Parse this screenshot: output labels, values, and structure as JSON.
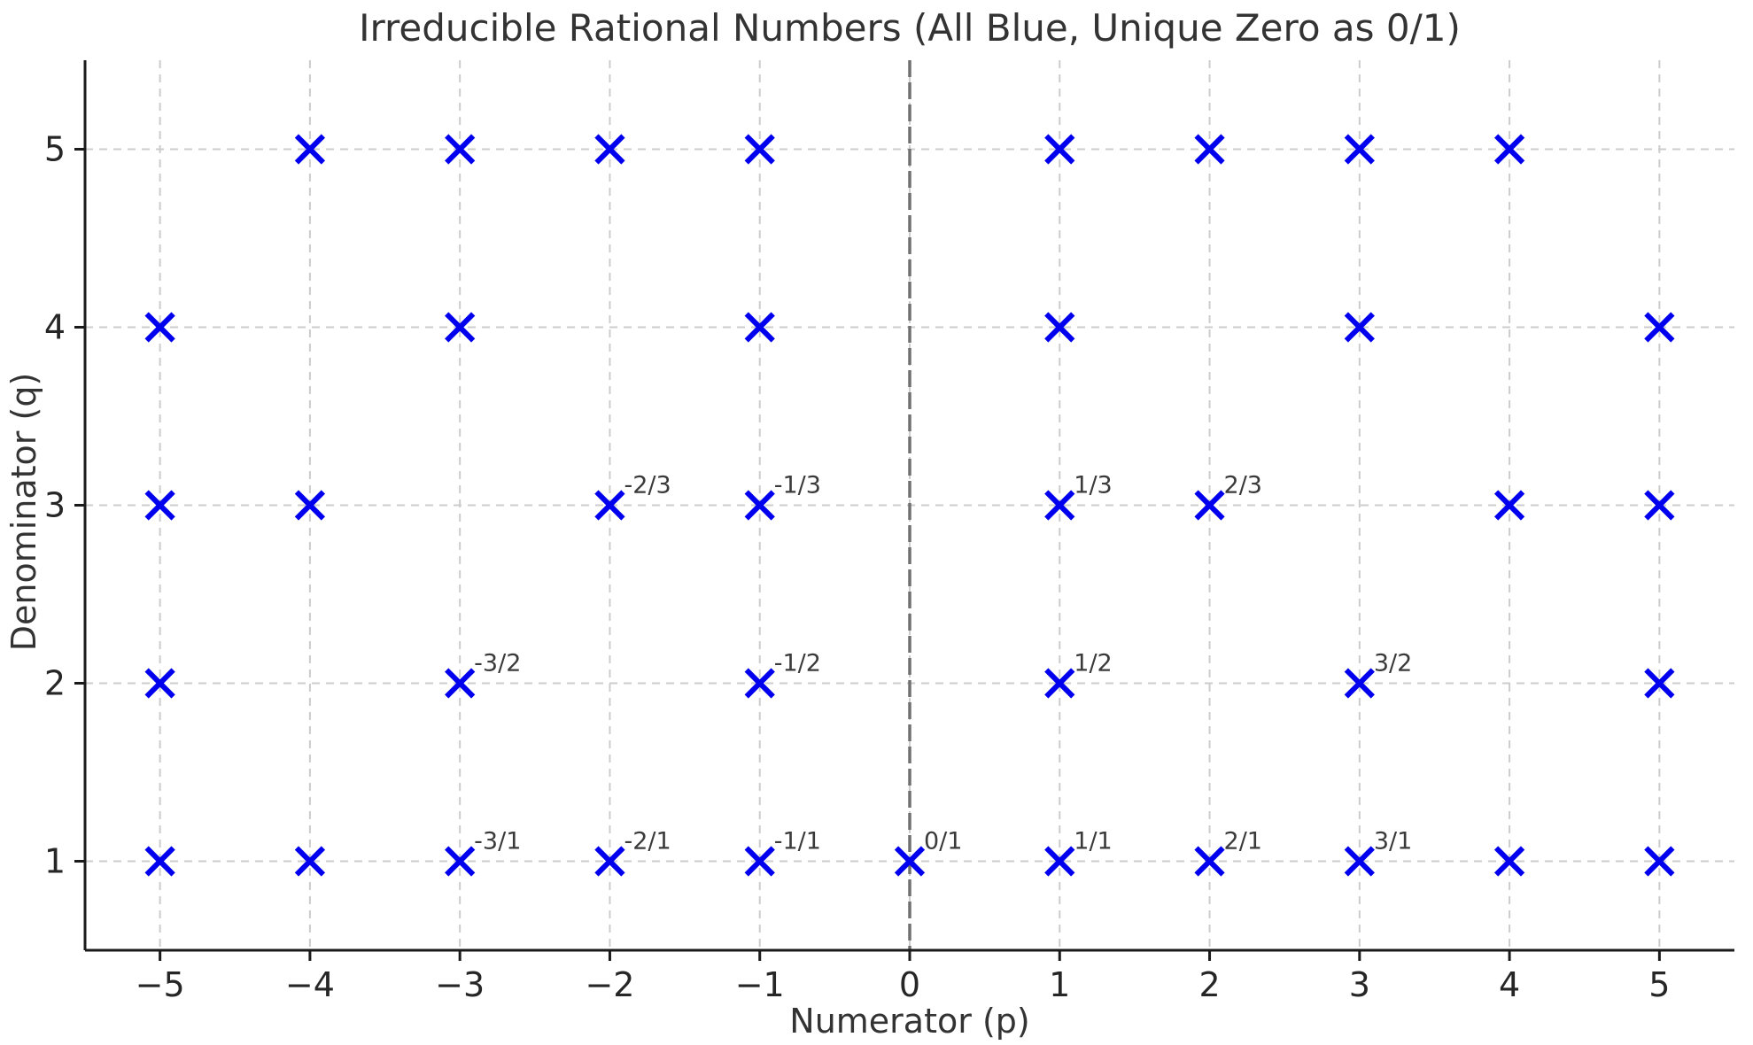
{
  "page": {
    "background": "#ffffff"
  },
  "chart_data": {
    "type": "scatter",
    "title": "Irreducible Rational Numbers (All Blue, Unique Zero as 0/1)",
    "xlabel": "Numerator (p)",
    "ylabel": "Denominator (q)",
    "xlim": [
      -5.5,
      5.5
    ],
    "ylim": [
      0.5,
      5.5
    ],
    "xticks": [
      {
        "value": -5,
        "label": "−5"
      },
      {
        "value": -4,
        "label": "−4"
      },
      {
        "value": -3,
        "label": "−3"
      },
      {
        "value": -2,
        "label": "−2"
      },
      {
        "value": -1,
        "label": "−1"
      },
      {
        "value": 0,
        "label": "0"
      },
      {
        "value": 1,
        "label": "1"
      },
      {
        "value": 2,
        "label": "2"
      },
      {
        "value": 3,
        "label": "3"
      },
      {
        "value": 4,
        "label": "4"
      },
      {
        "value": 5,
        "label": "5"
      }
    ],
    "yticks": [
      {
        "value": 1,
        "label": "1"
      },
      {
        "value": 2,
        "label": "2"
      },
      {
        "value": 3,
        "label": "3"
      },
      {
        "value": 4,
        "label": "4"
      },
      {
        "value": 5,
        "label": "5"
      }
    ],
    "grid": {
      "show": true,
      "color": "#cccccc",
      "dash": "9 7",
      "width": 2
    },
    "zero_line": {
      "x": 0,
      "color": "#707070",
      "dash": "19 6",
      "width": 3.5
    },
    "axis": {
      "spine_color": "#1a1a1a",
      "spine_width": 3,
      "tick_color": "#1a1a1a",
      "tick_length": 12,
      "tick_label_color": "#262626",
      "text_color": "#333333"
    },
    "marker": {
      "shape": "x",
      "color": "#0000ee",
      "half_size": 15,
      "stroke_width": 6
    },
    "annotation": {
      "color": "#3a3a3a",
      "offset_x": 16,
      "offset_y": -14
    },
    "points": [
      {
        "p": -5,
        "q": 1,
        "label": null
      },
      {
        "p": -4,
        "q": 1,
        "label": null
      },
      {
        "p": -3,
        "q": 1,
        "label": "-3/1"
      },
      {
        "p": -2,
        "q": 1,
        "label": "-2/1"
      },
      {
        "p": -1,
        "q": 1,
        "label": "-1/1"
      },
      {
        "p": 0,
        "q": 1,
        "label": "0/1"
      },
      {
        "p": 1,
        "q": 1,
        "label": "1/1"
      },
      {
        "p": 2,
        "q": 1,
        "label": "2/1"
      },
      {
        "p": 3,
        "q": 1,
        "label": "3/1"
      },
      {
        "p": 4,
        "q": 1,
        "label": null
      },
      {
        "p": 5,
        "q": 1,
        "label": null
      },
      {
        "p": -5,
        "q": 2,
        "label": null
      },
      {
        "p": -3,
        "q": 2,
        "label": "-3/2"
      },
      {
        "p": -1,
        "q": 2,
        "label": "-1/2"
      },
      {
        "p": 1,
        "q": 2,
        "label": "1/2"
      },
      {
        "p": 3,
        "q": 2,
        "label": "3/2"
      },
      {
        "p": 5,
        "q": 2,
        "label": null
      },
      {
        "p": -5,
        "q": 3,
        "label": null
      },
      {
        "p": -4,
        "q": 3,
        "label": null
      },
      {
        "p": -2,
        "q": 3,
        "label": "-2/3"
      },
      {
        "p": -1,
        "q": 3,
        "label": "-1/3"
      },
      {
        "p": 1,
        "q": 3,
        "label": "1/3"
      },
      {
        "p": 2,
        "q": 3,
        "label": "2/3"
      },
      {
        "p": 4,
        "q": 3,
        "label": null
      },
      {
        "p": 5,
        "q": 3,
        "label": null
      },
      {
        "p": -5,
        "q": 4,
        "label": null
      },
      {
        "p": -3,
        "q": 4,
        "label": null
      },
      {
        "p": -1,
        "q": 4,
        "label": null
      },
      {
        "p": 1,
        "q": 4,
        "label": null
      },
      {
        "p": 3,
        "q": 4,
        "label": null
      },
      {
        "p": 5,
        "q": 4,
        "label": null
      },
      {
        "p": -4,
        "q": 5,
        "label": null
      },
      {
        "p": -3,
        "q": 5,
        "label": null
      },
      {
        "p": -2,
        "q": 5,
        "label": null
      },
      {
        "p": -1,
        "q": 5,
        "label": null
      },
      {
        "p": 1,
        "q": 5,
        "label": null
      },
      {
        "p": 2,
        "q": 5,
        "label": null
      },
      {
        "p": 3,
        "q": 5,
        "label": null
      },
      {
        "p": 4,
        "q": 5,
        "label": null
      }
    ]
  }
}
